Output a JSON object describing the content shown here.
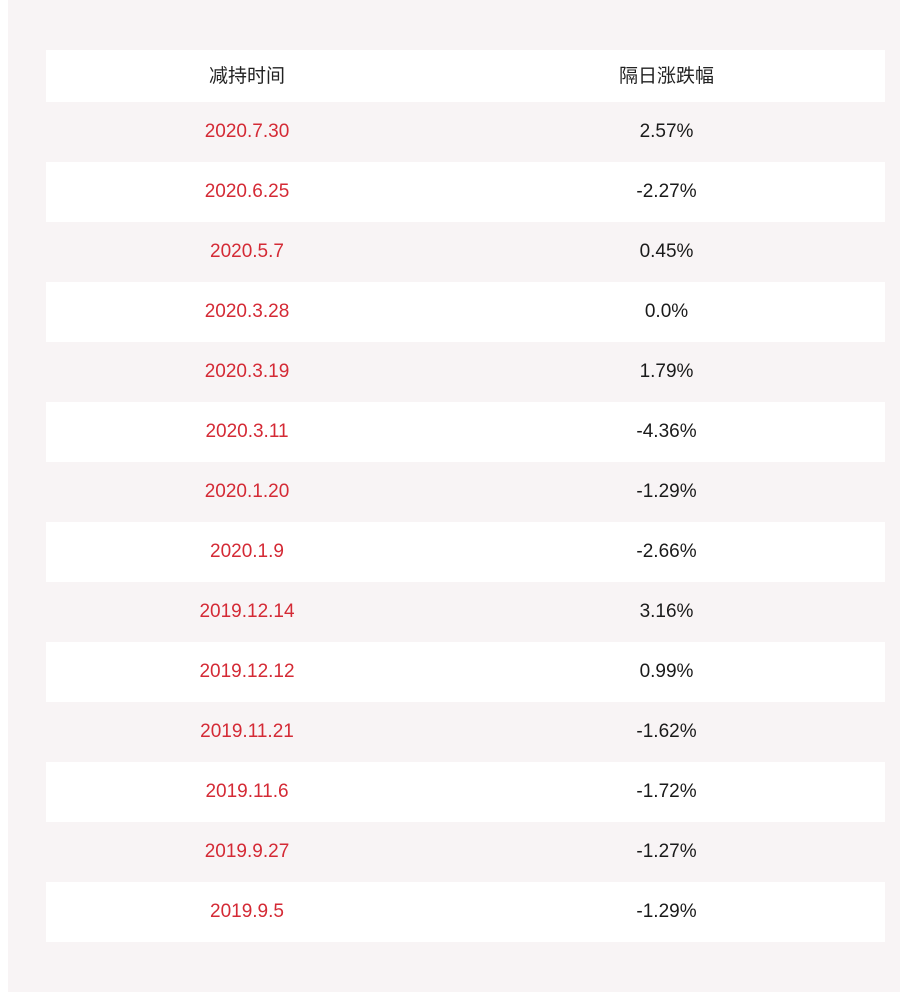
{
  "colors": {
    "date_text": "#d42a35",
    "value_text": "#1a1a1a",
    "stripe": "#f8f4f5",
    "row_white": "#ffffff"
  },
  "chart_data": {
    "type": "table",
    "columns": [
      "减持时间",
      "隔日涨跌幅"
    ],
    "rows": [
      [
        "2020.7.30",
        "2.57%"
      ],
      [
        "2020.6.25",
        "-2.27%"
      ],
      [
        "2020.5.7",
        "0.45%"
      ],
      [
        "2020.3.28",
        "0.0%"
      ],
      [
        "2020.3.19",
        "1.79%"
      ],
      [
        "2020.3.11",
        "-4.36%"
      ],
      [
        "2020.1.20",
        "-1.29%"
      ],
      [
        "2020.1.9",
        "-2.66%"
      ],
      [
        "2019.12.14",
        "3.16%"
      ],
      [
        "2019.12.12",
        "0.99%"
      ],
      [
        "2019.11.21",
        "-1.62%"
      ],
      [
        "2019.11.6",
        "-1.72%"
      ],
      [
        "2019.9.27",
        "-1.27%"
      ],
      [
        "2019.9.5",
        "-1.29%"
      ]
    ]
  }
}
